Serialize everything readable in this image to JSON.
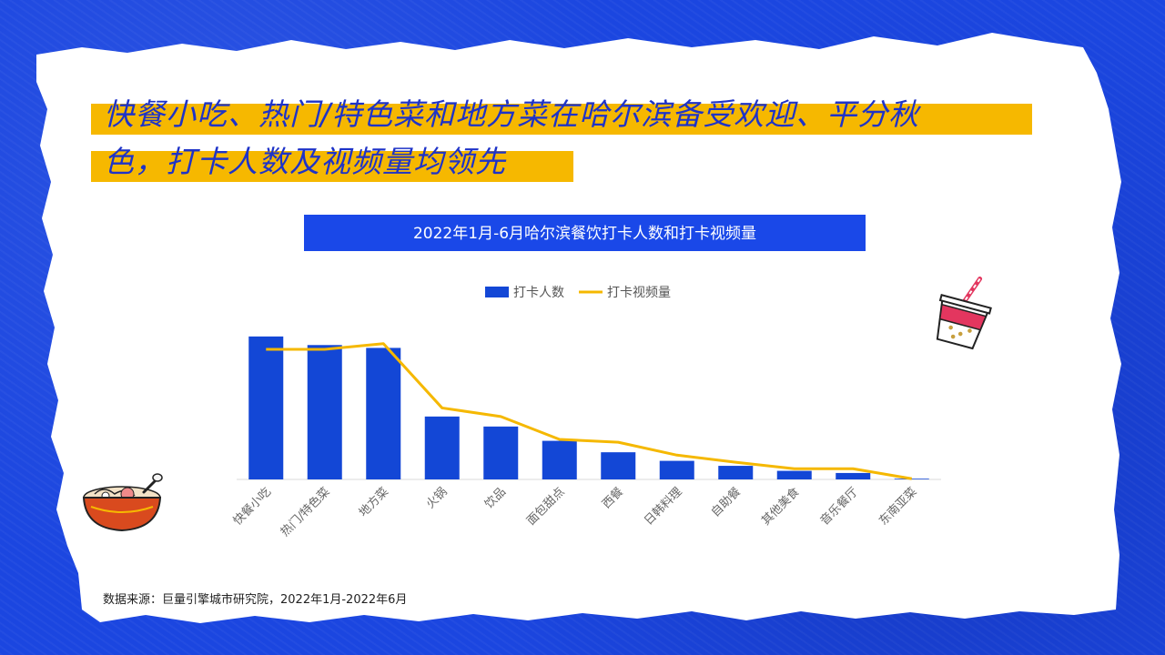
{
  "title_lines": [
    "快餐小吃、热门/特色菜和地方菜在哈尔滨备受欢迎、平分秋",
    "色，打卡人数及视频量均领先"
  ],
  "chart_title": "2022年1月-6月哈尔滨餐饮打卡人数和打卡视频量",
  "source_note": "数据来源：巨量引擎城市研究院，2022年1月-2022年6月",
  "colors": {
    "bar": "#1347d6",
    "line": "#f5b800",
    "banner": "#1a48e8",
    "highlight": "#f6b800"
  },
  "chart_data": {
    "type": "bar",
    "categories": [
      "快餐小吃",
      "热门/特色菜",
      "地方菜",
      "火锅",
      "饮品",
      "面包甜点",
      "西餐",
      "日韩料理",
      "自助餐",
      "其他美食",
      "音乐餐厅",
      "东南亚菜"
    ],
    "series": [
      {
        "name": "打卡人数",
        "type": "bar",
        "values": [
          100,
          94,
          92,
          44,
          37,
          27,
          19,
          13,
          9.5,
          6,
          4.5,
          0.5
        ]
      },
      {
        "name": "打卡视频量",
        "type": "line",
        "values": [
          91,
          91,
          95,
          50,
          44,
          28,
          26,
          17,
          12,
          7.5,
          7.5,
          0.5
        ]
      }
    ],
    "ylim": [
      0,
      105
    ],
    "legend": "top-center",
    "grid": false
  }
}
